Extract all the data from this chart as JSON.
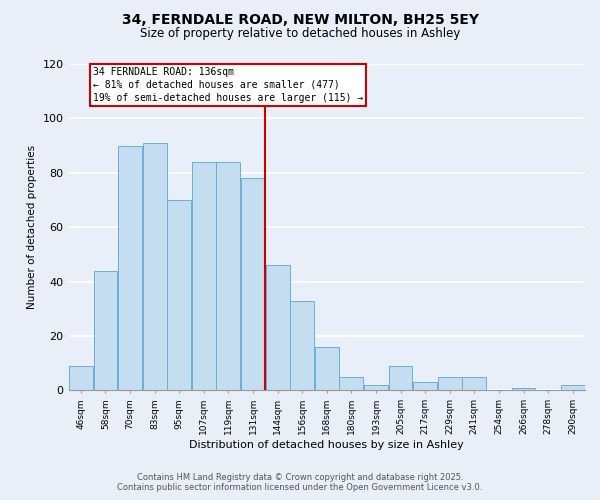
{
  "title": "34, FERNDALE ROAD, NEW MILTON, BH25 5EY",
  "subtitle": "Size of property relative to detached houses in Ashley",
  "xlabel": "Distribution of detached houses by size in Ashley",
  "ylabel": "Number of detached properties",
  "bar_labels": [
    "46sqm",
    "58sqm",
    "70sqm",
    "83sqm",
    "95sqm",
    "107sqm",
    "119sqm",
    "131sqm",
    "144sqm",
    "156sqm",
    "168sqm",
    "180sqm",
    "193sqm",
    "205sqm",
    "217sqm",
    "229sqm",
    "241sqm",
    "254sqm",
    "266sqm",
    "278sqm",
    "290sqm"
  ],
  "bar_values": [
    9,
    44,
    90,
    91,
    70,
    84,
    84,
    78,
    46,
    33,
    16,
    5,
    2,
    9,
    3,
    5,
    5,
    0,
    1,
    0,
    2
  ],
  "bar_color": "#c5ddf0",
  "bar_edge_color": "#6aaed6",
  "vline_x_index": 7,
  "vline_color": "#cc0000",
  "annotation_title": "34 FERNDALE ROAD: 136sqm",
  "annotation_line1": "← 81% of detached houses are smaller (477)",
  "annotation_line2": "19% of semi-detached houses are larger (115) →",
  "annotation_box_color": "#cc0000",
  "ylim": [
    0,
    120
  ],
  "yticks": [
    0,
    20,
    40,
    60,
    80,
    100,
    120
  ],
  "footer1": "Contains HM Land Registry data © Crown copyright and database right 2025.",
  "footer2": "Contains public sector information licensed under the Open Government Licence v3.0.",
  "bg_color": "#e8eff8",
  "grid_color": "#ffffff"
}
